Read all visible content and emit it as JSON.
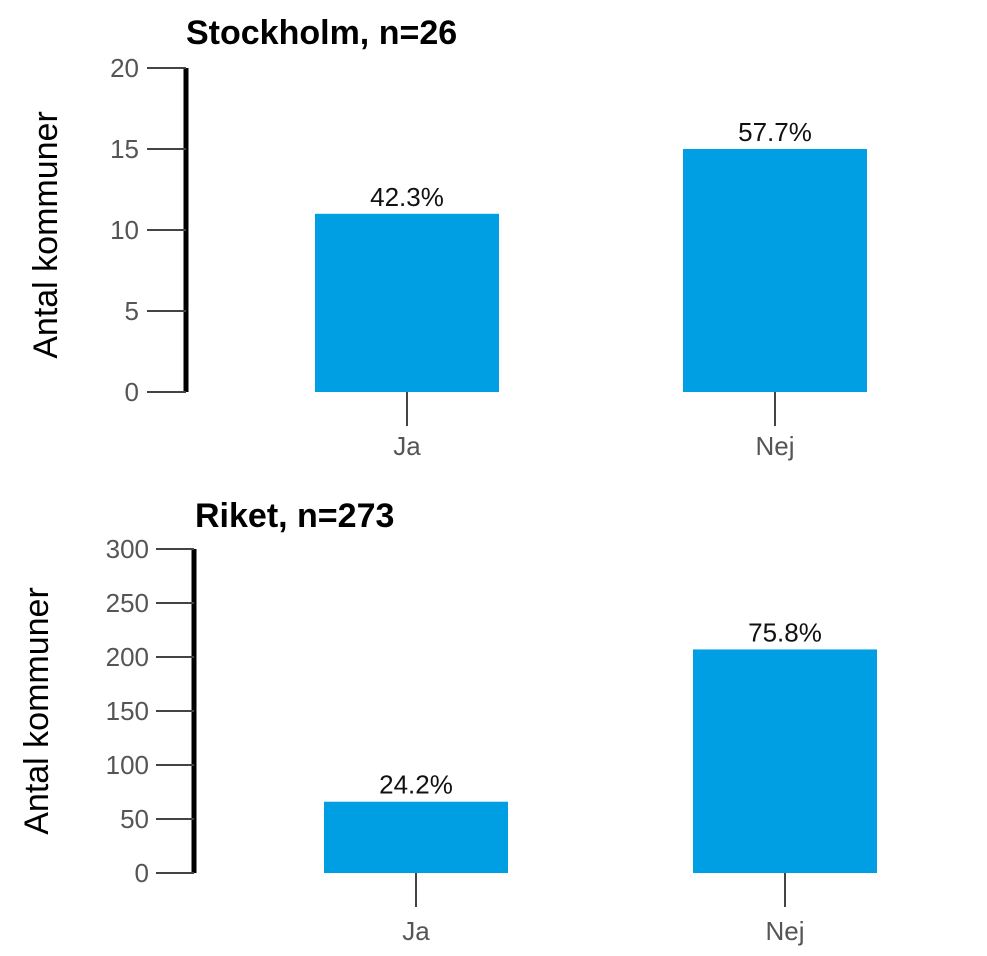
{
  "chart_data": [
    {
      "type": "bar",
      "title": "Stockholm, n=26",
      "ylabel": "Antal kommuner",
      "xlabel": "",
      "categories": [
        "Ja",
        "Nej"
      ],
      "values": [
        11,
        15
      ],
      "data_labels": [
        "42.3%",
        "57.7%"
      ],
      "yticks": [
        0,
        5,
        10,
        15,
        20
      ],
      "ylim": [
        0,
        20
      ],
      "grid": false,
      "bar_color": "#009fe3"
    },
    {
      "type": "bar",
      "title": "Riket, n=273",
      "ylabel": "Antal kommuner",
      "xlabel": "",
      "categories": [
        "Ja",
        "Nej"
      ],
      "values": [
        66,
        207
      ],
      "data_labels": [
        "24.2%",
        "75.8%"
      ],
      "yticks": [
        0,
        50,
        100,
        150,
        200,
        250,
        300
      ],
      "ylim": [
        0,
        300
      ],
      "grid": false,
      "bar_color": "#009fe3"
    }
  ]
}
